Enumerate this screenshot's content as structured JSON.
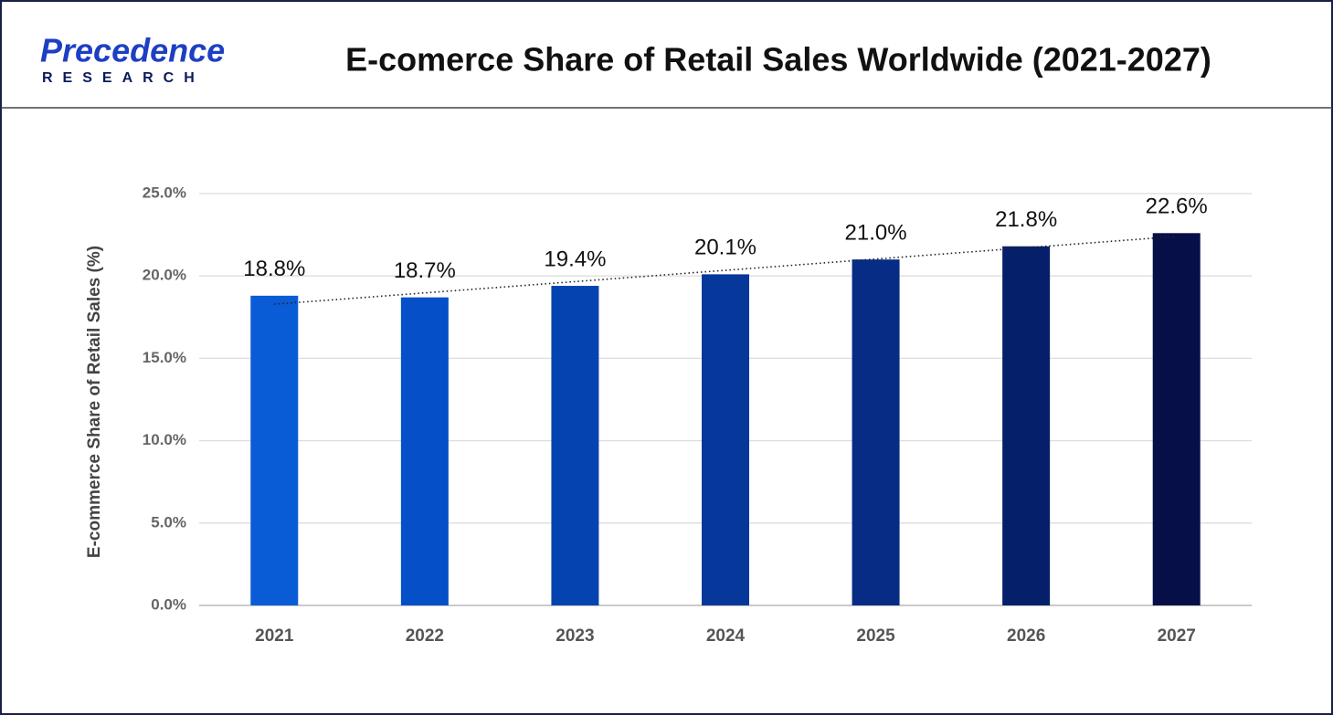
{
  "logo": {
    "name": "Precedence",
    "tagline": "RESEARCH"
  },
  "chart_data": {
    "type": "bar",
    "title": "E-comerce Share of Retail Sales Worldwide (2021-2027)",
    "y_label": "E-commerce Share of Retail Sales (%)",
    "categories": [
      "2021",
      "2022",
      "2023",
      "2024",
      "2025",
      "2026",
      "2027"
    ],
    "values": [
      18.8,
      18.7,
      19.4,
      20.1,
      21.0,
      21.8,
      22.6
    ],
    "value_labels": [
      "18.8%",
      "18.7%",
      "19.4%",
      "20.1%",
      "21.0%",
      "21.8%",
      "22.6%"
    ],
    "colors": [
      "#0a5bd6",
      "#0550c8",
      "#0444b0",
      "#05389a",
      "#062c85",
      "#061f6a",
      "#060f48"
    ],
    "ylim": [
      0,
      25
    ],
    "yticks": [
      {
        "value": 0,
        "label": "0.0%"
      },
      {
        "value": 5,
        "label": "5.0%"
      },
      {
        "value": 10,
        "label": "10.0%"
      },
      {
        "value": 15,
        "label": "15.0%"
      },
      {
        "value": 20,
        "label": "20.0%"
      },
      {
        "value": 25,
        "label": "25.0%"
      }
    ],
    "grid": true,
    "trendline": "linear"
  }
}
